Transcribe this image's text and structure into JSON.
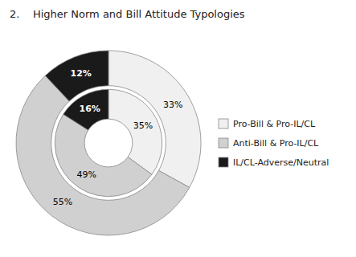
{
  "chart_data": {
    "type": "donut",
    "title": "2.    Higher Norm and Bill Attitude Typologies",
    "categories": [
      "Pro-Bill & Pro-IL/CL",
      "Anti-Bill & Pro-IL/CL",
      "IL/CL-Adverse/Neutral"
    ],
    "colors": [
      "#f0f0f0",
      "#d0d0d0",
      "#1a1a1a"
    ],
    "series": [
      {
        "values": [
          33,
          55,
          12
        ],
        "value_labels": [
          "33%",
          "55%",
          "12%"
        ]
      },
      {
        "values": [
          35,
          49,
          16
        ],
        "value_labels": [
          "35%",
          "49%",
          "16%"
        ]
      }
    ],
    "data_labels": true,
    "legend": "right"
  }
}
